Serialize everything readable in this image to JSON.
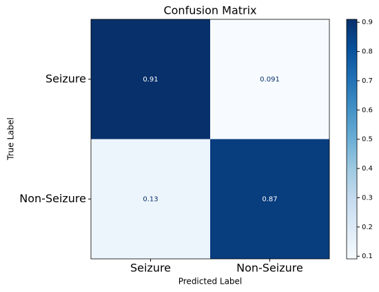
{
  "chart_data": {
    "type": "heatmap",
    "title": "Confusion Matrix",
    "x_label": "Predicted Label",
    "y_label": "True Label",
    "x_categories": [
      "Seizure",
      "Non-Seizure"
    ],
    "y_categories": [
      "Seizure",
      "Non-Seizure"
    ],
    "values": [
      [
        0.91,
        0.091
      ],
      [
        0.13,
        0.87
      ]
    ],
    "colormap": "Blues",
    "clim": [
      0.091,
      0.91
    ],
    "colorbar_ticks": [
      0.1,
      0.2,
      0.3,
      0.4,
      0.5,
      0.6,
      0.7,
      0.8,
      0.9
    ]
  }
}
